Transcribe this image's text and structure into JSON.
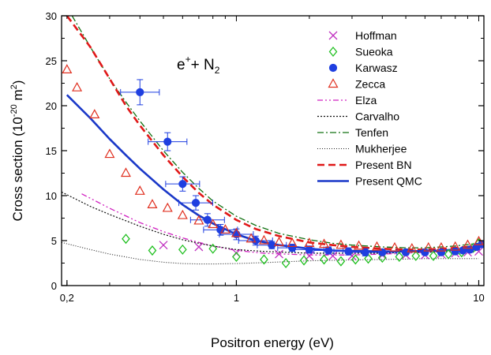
{
  "chart_data": {
    "type": "scatter",
    "title": "",
    "xlabel": "Positron energy (eV)",
    "ylabel_main": "Cross section (10",
    "ylabel_exp": "-20",
    "ylabel_unit": " m",
    "ylabel_unit_exp": "2",
    "ylabel_close": ")",
    "xscale": "log",
    "xlim": [
      0.19,
      10.5
    ],
    "ylim": [
      0,
      30
    ],
    "x_ticks": [
      {
        "v": 0.2,
        "label": "0,2"
      },
      {
        "v": 1,
        "label": "1"
      },
      {
        "v": 10,
        "label": "10"
      }
    ],
    "y_ticks": [
      0,
      5,
      10,
      15,
      20,
      25,
      30
    ],
    "y_tick_labels": [
      "0",
      "5",
      "10",
      "15",
      "20",
      "25",
      "30"
    ],
    "annotation": {
      "pre": "e",
      "sup1": "+",
      "mid": "+ N",
      "sub": "2"
    },
    "legend_position": "top-right",
    "series": [
      {
        "name": "Hoffman",
        "kind": "marker",
        "marker": "x",
        "color": "#c030c0",
        "points": [
          [
            0.5,
            4.5
          ],
          [
            0.7,
            4.3
          ],
          [
            1.0,
            3.6
          ],
          [
            1.5,
            3.5
          ],
          [
            2.0,
            3.3
          ],
          [
            2.5,
            3.3
          ],
          [
            3.0,
            3.3
          ],
          [
            4.0,
            3.4
          ],
          [
            5.0,
            3.4
          ],
          [
            6.0,
            3.4
          ],
          [
            7.0,
            3.5
          ],
          [
            8.0,
            3.6
          ],
          [
            9.0,
            3.7
          ],
          [
            10.0,
            3.8
          ]
        ]
      },
      {
        "name": "Sueoka",
        "kind": "marker",
        "marker": "diamond",
        "color": "#22c022",
        "points": [
          [
            0.35,
            5.2
          ],
          [
            0.45,
            3.9
          ],
          [
            0.6,
            4.0
          ],
          [
            0.8,
            4.1
          ],
          [
            1.0,
            3.2
          ],
          [
            1.3,
            2.9
          ],
          [
            1.6,
            2.5
          ],
          [
            1.9,
            2.8
          ],
          [
            2.3,
            2.9
          ],
          [
            2.7,
            2.7
          ],
          [
            3.1,
            2.9
          ],
          [
            3.5,
            3.0
          ],
          [
            4.0,
            3.1
          ],
          [
            4.7,
            3.2
          ],
          [
            5.5,
            3.3
          ],
          [
            6.5,
            3.3
          ],
          [
            7.5,
            3.5
          ],
          [
            8.5,
            3.7
          ],
          [
            9.5,
            4.2
          ],
          [
            10.0,
            4.7
          ]
        ]
      },
      {
        "name": "Karwasz",
        "kind": "marker",
        "marker": "circle",
        "color": "#1f3fe0",
        "points": [
          [
            0.4,
            21.5,
            1.4,
            0.08
          ],
          [
            0.52,
            16.0,
            1.0,
            0.08
          ],
          [
            0.6,
            11.3,
            0.8,
            0.07
          ],
          [
            0.68,
            9.2,
            0.8,
            0.07
          ],
          [
            0.76,
            7.3,
            0.7,
            0.07
          ],
          [
            0.86,
            6.2,
            0.6,
            0.07
          ],
          [
            1.0,
            5.7,
            0.6,
            0.07
          ],
          [
            1.2,
            5.0,
            0.5,
            0.07
          ],
          [
            1.4,
            4.5,
            0.4,
            0.06
          ],
          [
            1.7,
            4.2,
            0.4,
            0.06
          ],
          [
            2.0,
            4.0,
            0.4,
            0.06
          ],
          [
            2.4,
            3.9,
            0.4,
            0.06
          ],
          [
            2.9,
            3.8,
            0.4,
            0.06
          ],
          [
            3.4,
            3.7,
            0.4,
            0.06
          ],
          [
            4.0,
            3.7,
            0.3,
            0.06
          ],
          [
            5.0,
            3.7,
            0.3,
            0
          ],
          [
            6.0,
            3.7,
            0.3,
            0
          ],
          [
            7.0,
            3.7,
            0.3,
            0
          ],
          [
            8.0,
            3.8,
            0.3,
            0
          ],
          [
            8.6,
            3.9,
            0.3,
            0
          ],
          [
            9.2,
            4.0,
            0.3,
            0
          ],
          [
            9.8,
            4.3,
            0.3,
            0
          ],
          [
            10.3,
            4.6,
            0.3,
            0
          ]
        ]
      },
      {
        "name": "Zecca",
        "kind": "marker",
        "marker": "triangle",
        "color": "#e03020",
        "points": [
          [
            0.2,
            24.0
          ],
          [
            0.22,
            22.0
          ],
          [
            0.26,
            19.0
          ],
          [
            0.3,
            14.6
          ],
          [
            0.35,
            12.5
          ],
          [
            0.4,
            10.5
          ],
          [
            0.45,
            9.0
          ],
          [
            0.52,
            8.6
          ],
          [
            0.6,
            7.8
          ],
          [
            0.7,
            7.2
          ],
          [
            0.8,
            6.8
          ],
          [
            0.9,
            6.2
          ],
          [
            1.0,
            5.8
          ],
          [
            1.15,
            5.2
          ],
          [
            1.3,
            5.0
          ],
          [
            1.5,
            4.8
          ],
          [
            1.7,
            4.7
          ],
          [
            2.0,
            4.7
          ],
          [
            2.3,
            4.6
          ],
          [
            2.7,
            4.5
          ],
          [
            3.2,
            4.4
          ],
          [
            3.8,
            4.3
          ],
          [
            4.5,
            4.2
          ],
          [
            5.3,
            4.1
          ],
          [
            6.2,
            4.2
          ],
          [
            7.0,
            4.2
          ],
          [
            8.0,
            4.3
          ],
          [
            9.0,
            4.5
          ],
          [
            10.0,
            4.9
          ]
        ]
      },
      {
        "name": "Elza",
        "kind": "line",
        "color": "#d020c0",
        "dash": "7,3,2,3,2,3",
        "width": 1.3,
        "points": [
          [
            0.23,
            10.2
          ],
          [
            0.3,
            8.6
          ],
          [
            0.4,
            7.0
          ],
          [
            0.5,
            6.0
          ],
          [
            0.6,
            5.3
          ],
          [
            0.7,
            4.8
          ],
          [
            0.8,
            4.4
          ],
          [
            1.0,
            3.9
          ],
          [
            1.3,
            3.6
          ],
          [
            1.6,
            3.5
          ],
          [
            2.0,
            3.4
          ],
          [
            3.0,
            3.4
          ],
          [
            4.0,
            3.5
          ],
          [
            5.0,
            3.6
          ],
          [
            6.0,
            3.7
          ],
          [
            7.0,
            3.8
          ],
          [
            8.0,
            3.9
          ],
          [
            10.0,
            4.1
          ]
        ]
      },
      {
        "name": "Carvalho",
        "kind": "line",
        "color": "#111111",
        "dash": "2,2",
        "width": 1.2,
        "points": [
          [
            0.19,
            10.4
          ],
          [
            0.25,
            8.8
          ],
          [
            0.3,
            7.9
          ],
          [
            0.4,
            6.6
          ],
          [
            0.5,
            5.7
          ],
          [
            0.6,
            5.1
          ],
          [
            0.7,
            4.7
          ],
          [
            0.8,
            4.4
          ],
          [
            1.0,
            4.0
          ],
          [
            1.3,
            3.8
          ],
          [
            1.6,
            3.7
          ],
          [
            2.0,
            3.6
          ],
          [
            3.0,
            3.6
          ],
          [
            4.0,
            3.6
          ],
          [
            5.0,
            3.7
          ],
          [
            6.0,
            3.7
          ],
          [
            8.0,
            3.8
          ],
          [
            10.0,
            3.9
          ]
        ]
      },
      {
        "name": "Tenfen",
        "kind": "line",
        "color": "#107010",
        "dash": "8,3,2,3",
        "width": 1.3,
        "points": [
          [
            0.21,
            30.0
          ],
          [
            0.25,
            26.5
          ],
          [
            0.3,
            23.0
          ],
          [
            0.35,
            20.4
          ],
          [
            0.4,
            18.3
          ],
          [
            0.5,
            15.0
          ],
          [
            0.6,
            12.6
          ],
          [
            0.7,
            10.8
          ],
          [
            0.8,
            9.4
          ],
          [
            1.0,
            7.7
          ],
          [
            1.2,
            6.7
          ],
          [
            1.5,
            5.8
          ],
          [
            2.0,
            5.1
          ],
          [
            2.5,
            4.7
          ],
          [
            3.0,
            4.5
          ],
          [
            4.0,
            4.3
          ],
          [
            5.0,
            4.2
          ],
          [
            6.0,
            4.2
          ],
          [
            7.0,
            4.3
          ],
          [
            8.0,
            4.4
          ],
          [
            10.0,
            4.7
          ]
        ]
      },
      {
        "name": "Mukherjee",
        "kind": "line",
        "color": "#222222",
        "dash": "1,2",
        "width": 1.1,
        "points": [
          [
            0.19,
            4.8
          ],
          [
            0.25,
            4.0
          ],
          [
            0.3,
            3.5
          ],
          [
            0.4,
            2.9
          ],
          [
            0.5,
            2.6
          ],
          [
            0.6,
            2.45
          ],
          [
            0.7,
            2.4
          ],
          [
            0.8,
            2.4
          ],
          [
            1.0,
            2.45
          ],
          [
            1.3,
            2.55
          ],
          [
            1.6,
            2.65
          ],
          [
            2.0,
            2.75
          ],
          [
            3.0,
            2.85
          ],
          [
            4.0,
            2.9
          ],
          [
            5.0,
            2.95
          ],
          [
            6.0,
            3.0
          ],
          [
            8.0,
            3.0
          ],
          [
            10.0,
            3.0
          ]
        ]
      },
      {
        "name": "Present BN",
        "kind": "line",
        "color": "#e01818",
        "dash": "9,5",
        "width": 2.6,
        "points": [
          [
            0.2,
            30.0
          ],
          [
            0.25,
            26.5
          ],
          [
            0.3,
            23.0
          ],
          [
            0.35,
            20.0
          ],
          [
            0.4,
            17.8
          ],
          [
            0.5,
            14.5
          ],
          [
            0.6,
            12.1
          ],
          [
            0.7,
            10.3
          ],
          [
            0.8,
            9.0
          ],
          [
            1.0,
            7.3
          ],
          [
            1.2,
            6.3
          ],
          [
            1.5,
            5.5
          ],
          [
            2.0,
            4.8
          ],
          [
            2.5,
            4.5
          ],
          [
            3.0,
            4.3
          ],
          [
            4.0,
            4.1
          ],
          [
            5.0,
            4.0
          ],
          [
            6.0,
            4.0
          ],
          [
            7.0,
            4.1
          ],
          [
            8.0,
            4.2
          ],
          [
            10.0,
            4.4
          ]
        ]
      },
      {
        "name": "Present QMC",
        "kind": "line",
        "color": "#1a38c8",
        "dash": "",
        "width": 2.6,
        "points": [
          [
            0.2,
            21.2
          ],
          [
            0.25,
            18.6
          ],
          [
            0.3,
            16.3
          ],
          [
            0.35,
            14.5
          ],
          [
            0.4,
            13.0
          ],
          [
            0.5,
            10.7
          ],
          [
            0.6,
            9.0
          ],
          [
            0.7,
            7.8
          ],
          [
            0.8,
            6.9
          ],
          [
            1.0,
            5.7
          ],
          [
            1.2,
            5.0
          ],
          [
            1.5,
            4.5
          ],
          [
            2.0,
            4.1
          ],
          [
            2.5,
            3.9
          ],
          [
            3.0,
            3.85
          ],
          [
            4.0,
            3.8
          ],
          [
            5.0,
            3.8
          ],
          [
            6.0,
            3.85
          ],
          [
            7.0,
            3.9
          ],
          [
            8.0,
            4.0
          ],
          [
            9.0,
            4.1
          ],
          [
            10.0,
            4.3
          ]
        ]
      }
    ]
  }
}
